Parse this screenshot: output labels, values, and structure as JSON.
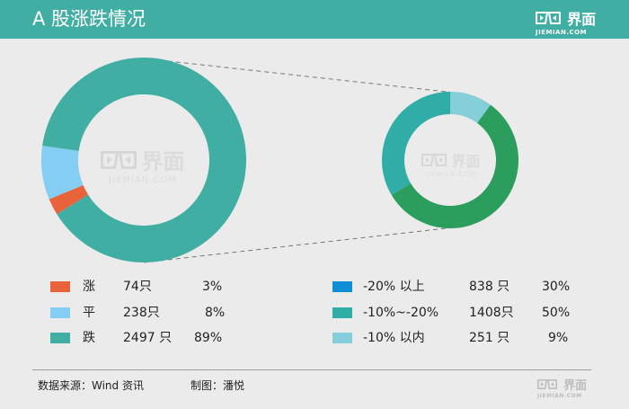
{
  "header": {
    "title": "A 股涨跌情况"
  },
  "brand": {
    "name_cn": "界面",
    "name_en": "JIEMIAN.COM",
    "watermark_en": "JIEMIAN.COM"
  },
  "colors": {
    "header_bg": "#41aea4",
    "up": "#e8633a",
    "flat": "#84cdf3",
    "down": "#41aea4",
    "drop_over_20": "#0e8fd4",
    "drop_10_20": "#2b9d5d",
    "drop_under_10": "#84cfd9",
    "drop_ring_base": "#2fada6"
  },
  "chart_data": [
    {
      "type": "pie",
      "series": [
        {
          "name": "涨",
          "count": "74只",
          "percent": "3%",
          "value": 74
        },
        {
          "name": "平",
          "count": "238只",
          "percent": "8%",
          "value": 238
        },
        {
          "name": "跌",
          "count": "2497 只",
          "percent": "89%",
          "value": 2497
        }
      ]
    },
    {
      "type": "pie",
      "series": [
        {
          "name": "-20% 以上",
          "count": "838 只",
          "percent": "30%",
          "value": 838
        },
        {
          "name": "-10%~-20%",
          "count": "1408只",
          "percent": "50%",
          "value": 1408
        },
        {
          "name": "-10% 以内",
          "count": "251 只",
          "percent": "9%",
          "value": 251
        }
      ]
    }
  ],
  "footer": {
    "source": "数据来源：Wind 资讯",
    "author": "制图：潘悦"
  }
}
